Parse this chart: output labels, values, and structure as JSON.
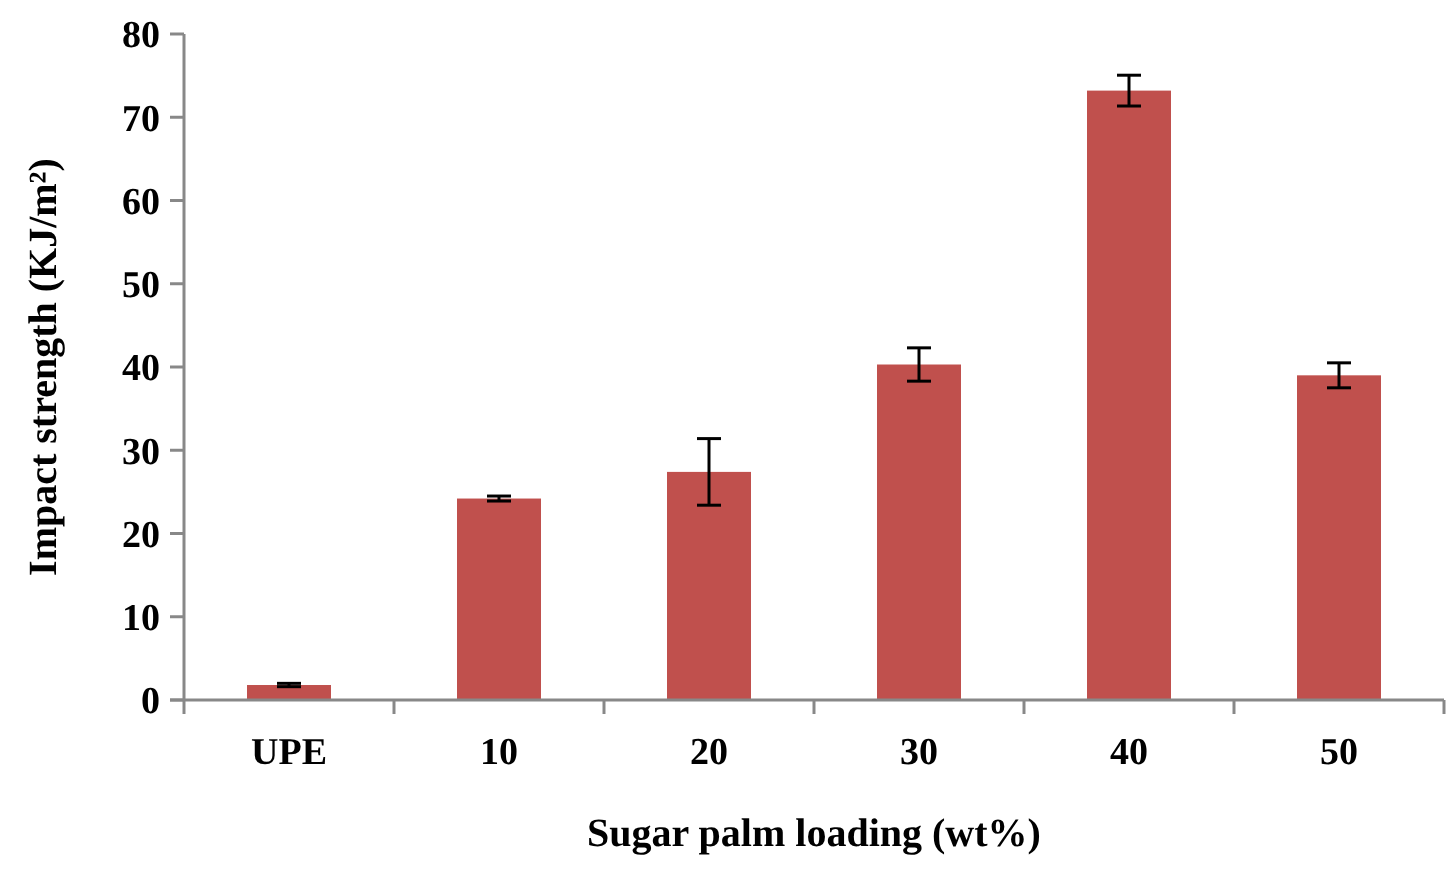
{
  "chart_data": {
    "type": "bar",
    "xlabel": "Sugar palm loading (wt%)",
    "ylabel": "Impact strength (KJ/m²)",
    "categories": [
      "UPE",
      "10",
      "20",
      "30",
      "40",
      "50"
    ],
    "values": [
      1.8,
      24.2,
      27.4,
      40.3,
      73.2,
      39.0
    ],
    "errors": [
      0.2,
      0.3,
      4,
      2,
      1.85,
      1.5
    ],
    "color": "#c0504d",
    "ylim": [
      0,
      80
    ],
    "yticks": [
      0,
      10,
      20,
      30,
      40,
      50,
      60,
      70,
      80
    ]
  }
}
